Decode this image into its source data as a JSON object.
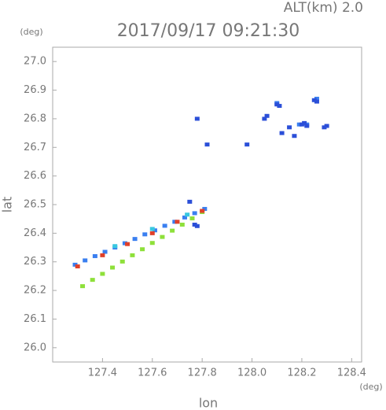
{
  "chart_data": {
    "type": "scatter",
    "title": "2017/09/17 09:21:30",
    "subtitle": "ALT(km) 2.0",
    "x_label": "lon",
    "x_unit": "(deg)",
    "y_label": "lat",
    "y_unit": "(deg)",
    "xlim": [
      127.2,
      128.44
    ],
    "ylim": [
      25.95,
      27.05
    ],
    "xticks": [
      127.4,
      127.6,
      127.8,
      {
        "value": 128.0,
        "label": "128.0"
      },
      128.2,
      128.4
    ],
    "yticks": [
      {
        "value": 26.0,
        "label": "26.0"
      },
      26.1,
      26.2,
      26.3,
      26.4,
      26.5,
      26.6,
      26.7,
      26.8,
      26.9,
      {
        "value": 27.0,
        "label": "27.0"
      }
    ],
    "series": [
      {
        "color": "#3a7ff0",
        "x": [
          127.29,
          127.33,
          127.37,
          127.41,
          127.45,
          127.49,
          127.53,
          127.57,
          127.61,
          127.65,
          127.69,
          127.73,
          127.77,
          127.81,
          128.19,
          128.26,
          128.1,
          128.22
        ],
        "y": [
          26.29,
          26.305,
          26.32,
          26.335,
          26.35,
          26.365,
          26.38,
          26.396,
          26.41,
          26.426,
          26.44,
          26.455,
          26.47,
          26.485,
          26.78,
          26.87,
          26.855,
          26.78
        ]
      },
      {
        "color": "#39c8e0",
        "x": [
          127.45,
          127.6,
          127.74
        ],
        "y": [
          26.355,
          26.415,
          26.465
        ]
      },
      {
        "color": "#8ee03a",
        "x": [
          127.32,
          127.36,
          127.4,
          127.44,
          127.48,
          127.52,
          127.56,
          127.6,
          127.64,
          127.68,
          127.72,
          127.76,
          127.8
        ],
        "y": [
          26.215,
          26.237,
          26.258,
          26.28,
          26.301,
          26.323,
          26.344,
          26.366,
          26.387,
          26.409,
          26.43,
          26.452,
          26.474
        ]
      },
      {
        "color": "#e0402a",
        "x": [
          127.3,
          127.4,
          127.5,
          127.6,
          127.7,
          127.8
        ],
        "y": [
          26.284,
          26.323,
          26.362,
          26.4,
          26.44,
          26.478
        ]
      },
      {
        "color": "#2b4fd8",
        "x": [
          128.1,
          128.11,
          128.06,
          128.05,
          128.15,
          128.2,
          128.22,
          128.21,
          128.25,
          128.26,
          128.29,
          128.3,
          128.12,
          128.17,
          127.82,
          127.75,
          127.77,
          127.78,
          127.98,
          127.78
        ],
        "y": [
          26.85,
          26.845,
          26.81,
          26.8,
          26.77,
          26.78,
          26.775,
          26.785,
          26.865,
          26.86,
          26.77,
          26.775,
          26.75,
          26.74,
          26.71,
          26.51,
          26.43,
          26.425,
          26.71,
          26.8
        ]
      }
    ]
  }
}
